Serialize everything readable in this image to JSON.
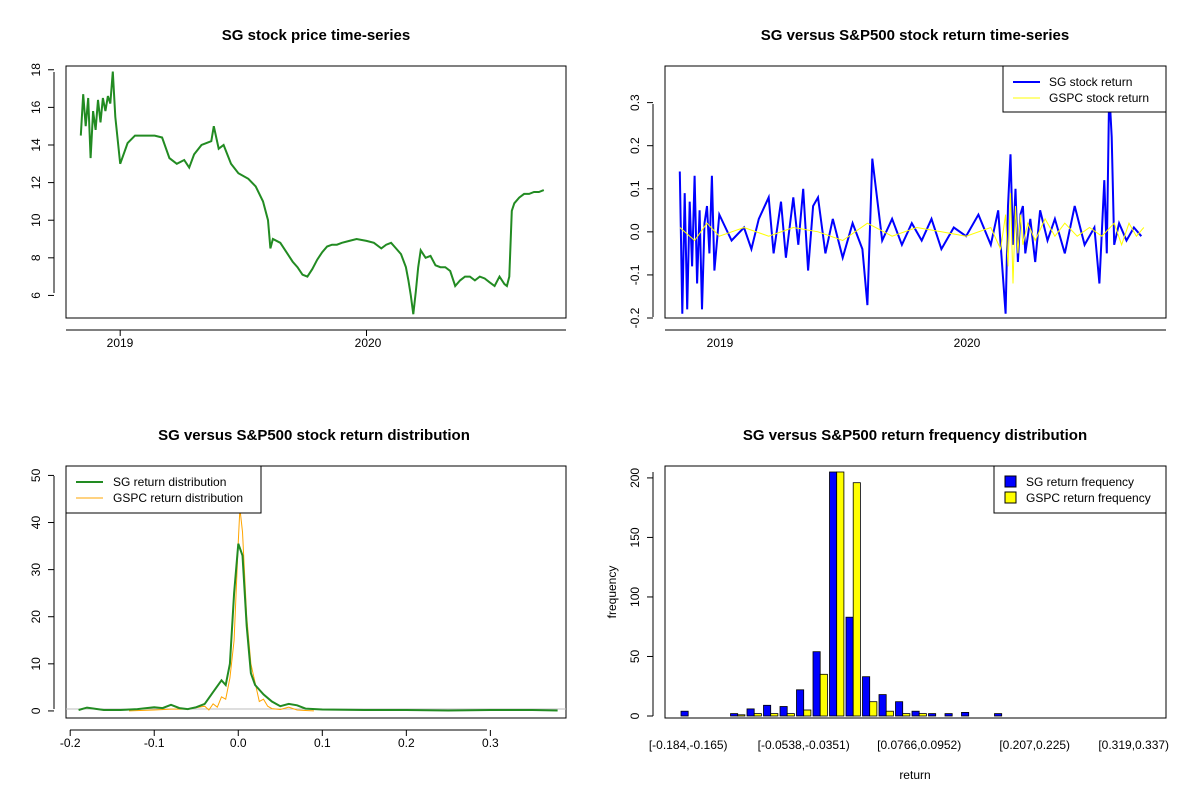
{
  "charts": [
    {
      "id": "p1",
      "type": "line",
      "title": "SG stock price time-series",
      "x_ticks": [
        "2019",
        "2020"
      ],
      "y_ticks": [
        "6",
        "8",
        "10",
        "12",
        "14",
        "16",
        "18"
      ],
      "color": "#228B22",
      "series": [
        {
          "name": "SG stock price",
          "x": [
            2018.84,
            2018.85,
            2018.86,
            2018.87,
            2018.88,
            2018.89,
            2018.9,
            2018.91,
            2018.92,
            2018.93,
            2018.94,
            2018.95,
            2018.96,
            2018.97,
            2018.98,
            2019.0,
            2019.03,
            2019.06,
            2019.1,
            2019.14,
            2019.17,
            2019.2,
            2019.23,
            2019.26,
            2019.28,
            2019.3,
            2019.33,
            2019.35,
            2019.37,
            2019.38,
            2019.4,
            2019.42,
            2019.45,
            2019.48,
            2019.52,
            2019.55,
            2019.58,
            2019.6,
            2019.61,
            2019.62,
            2019.65,
            2019.68,
            2019.7,
            2019.72,
            2019.74,
            2019.76,
            2019.78,
            2019.8,
            2019.82,
            2019.84,
            2019.86,
            2019.88,
            2019.9,
            2019.93,
            2019.96,
            2020.0,
            2020.03,
            2020.06,
            2020.08,
            2020.1,
            2020.12,
            2020.14,
            2020.16,
            2020.17,
            2020.18,
            2020.19,
            2020.2,
            2020.21,
            2020.22,
            2020.24,
            2020.26,
            2020.28,
            2020.3,
            2020.32,
            2020.34,
            2020.36,
            2020.38,
            2020.4,
            2020.42,
            2020.44,
            2020.46,
            2020.48,
            2020.5,
            2020.52,
            2020.54,
            2020.56,
            2020.57,
            2020.58,
            2020.59,
            2020.6,
            2020.62,
            2020.64,
            2020.66,
            2020.68,
            2020.7,
            2020.72
          ],
          "y": [
            14.5,
            16.7,
            15.0,
            16.5,
            13.3,
            15.8,
            14.8,
            16.4,
            15.2,
            16.5,
            15.8,
            16.6,
            16.2,
            17.9,
            15.5,
            13.0,
            14.1,
            14.5,
            14.5,
            14.5,
            14.4,
            13.3,
            13.0,
            13.2,
            12.8,
            13.5,
            14.0,
            14.1,
            14.2,
            15.0,
            13.8,
            14.0,
            13.0,
            12.5,
            12.2,
            11.8,
            11.0,
            10.0,
            8.5,
            9.0,
            8.8,
            8.2,
            7.8,
            7.5,
            7.1,
            7.0,
            7.4,
            7.9,
            8.3,
            8.6,
            8.7,
            8.7,
            8.8,
            8.9,
            9.0,
            8.9,
            8.8,
            8.5,
            8.7,
            8.8,
            8.5,
            8.2,
            7.5,
            6.8,
            6.0,
            5.0,
            6.2,
            7.5,
            8.4,
            8.0,
            8.1,
            7.6,
            7.5,
            7.5,
            7.3,
            6.5,
            6.8,
            7.0,
            7.0,
            6.8,
            7.0,
            6.9,
            6.7,
            6.5,
            7.0,
            6.6,
            6.5,
            7.0,
            10.5,
            10.9,
            11.2,
            11.4,
            11.4,
            11.5,
            11.5,
            11.6
          ]
        }
      ],
      "xlim": [
        2018.78,
        2020.81
      ],
      "ylim": [
        4.8,
        18.2
      ],
      "y_tick_values": [
        6,
        8,
        10,
        12,
        14,
        16,
        18
      ],
      "x_tick_values": [
        2019,
        2020
      ]
    },
    {
      "id": "p2",
      "type": "line",
      "title": "SG versus S&P500 stock return time-series",
      "x_ticks": [
        "2019",
        "2020"
      ],
      "y_ticks": [
        "-0.2",
        "-0.1",
        "0.0",
        "0.1",
        "0.2",
        "0.3"
      ],
      "x_tick_values": [
        2019,
        2020
      ],
      "y_tick_values": [
        -0.2,
        -0.1,
        0.0,
        0.1,
        0.2,
        0.3
      ],
      "xlim": [
        2018.78,
        2020.81
      ],
      "ylim": [
        -0.2,
        0.385
      ],
      "legend": [
        "SG stock return",
        "GSPC stock return"
      ],
      "colors": [
        "#0000FF",
        "#FFFF00"
      ],
      "series": [
        {
          "name": "SG stock return",
          "x": [
            2018.84,
            2018.85,
            2018.86,
            2018.87,
            2018.88,
            2018.89,
            2018.9,
            2018.91,
            2018.92,
            2018.93,
            2018.94,
            2018.95,
            2018.96,
            2018.97,
            2018.98,
            2019.0,
            2019.05,
            2019.1,
            2019.13,
            2019.16,
            2019.2,
            2019.22,
            2019.25,
            2019.27,
            2019.3,
            2019.32,
            2019.34,
            2019.36,
            2019.38,
            2019.4,
            2019.43,
            2019.46,
            2019.5,
            2019.54,
            2019.58,
            2019.6,
            2019.62,
            2019.66,
            2019.7,
            2019.74,
            2019.78,
            2019.82,
            2019.86,
            2019.9,
            2019.95,
            2020.0,
            2020.05,
            2020.1,
            2020.13,
            2020.16,
            2020.17,
            2020.18,
            2020.19,
            2020.2,
            2020.21,
            2020.22,
            2020.23,
            2020.24,
            2020.26,
            2020.28,
            2020.3,
            2020.33,
            2020.36,
            2020.4,
            2020.44,
            2020.48,
            2020.52,
            2020.54,
            2020.56,
            2020.57,
            2020.58,
            2020.59,
            2020.6,
            2020.62,
            2020.65,
            2020.68,
            2020.71
          ],
          "y": [
            0.14,
            -0.19,
            0.09,
            -0.18,
            0.07,
            -0.08,
            0.13,
            -0.12,
            0.05,
            -0.18,
            0.02,
            0.06,
            -0.05,
            0.13,
            -0.09,
            0.04,
            -0.02,
            0.01,
            -0.04,
            0.03,
            0.08,
            -0.05,
            0.07,
            -0.06,
            0.08,
            -0.03,
            0.1,
            -0.09,
            0.06,
            0.08,
            -0.05,
            0.03,
            -0.06,
            0.02,
            -0.04,
            -0.17,
            0.17,
            -0.02,
            0.03,
            -0.03,
            0.02,
            -0.02,
            0.03,
            -0.04,
            0.01,
            -0.01,
            0.04,
            -0.03,
            0.05,
            -0.19,
            0.06,
            0.18,
            -0.03,
            0.1,
            -0.07,
            0.04,
            0.06,
            -0.05,
            0.03,
            -0.07,
            0.05,
            -0.02,
            0.03,
            -0.05,
            0.06,
            -0.03,
            0.01,
            -0.12,
            0.12,
            -0.05,
            0.33,
            0.22,
            -0.03,
            0.02,
            -0.02,
            0.01,
            -0.01
          ]
        },
        {
          "name": "GSPC stock return",
          "x": [
            2018.84,
            2018.9,
            2018.95,
            2019.0,
            2019.1,
            2019.2,
            2019.3,
            2019.4,
            2019.5,
            2019.6,
            2019.7,
            2019.8,
            2019.9,
            2020.0,
            2020.1,
            2020.14,
            2020.16,
            2020.17,
            2020.18,
            2020.19,
            2020.2,
            2020.21,
            2020.22,
            2020.23,
            2020.25,
            2020.28,
            2020.32,
            2020.36,
            2020.4,
            2020.45,
            2020.5,
            2020.55,
            2020.6,
            2020.63,
            2020.66,
            2020.69,
            2020.72
          ],
          "y": [
            0.01,
            -0.02,
            0.02,
            -0.01,
            0.01,
            -0.01,
            0.01,
            0.0,
            -0.02,
            0.02,
            -0.01,
            0.01,
            0.0,
            -0.01,
            0.01,
            -0.04,
            0.04,
            -0.08,
            0.09,
            -0.12,
            0.06,
            -0.05,
            0.04,
            -0.03,
            0.02,
            -0.02,
            0.03,
            -0.01,
            0.02,
            -0.01,
            0.01,
            -0.01,
            0.02,
            -0.03,
            0.02,
            -0.01,
            0.01
          ]
        }
      ]
    },
    {
      "id": "p3",
      "type": "line",
      "title": "SG versus S&P500 stock return distribution",
      "x_ticks": [
        "-0.2",
        "-0.1",
        "0.0",
        "0.1",
        "0.2",
        "0.3"
      ],
      "y_ticks": [
        "0",
        "10",
        "20",
        "30",
        "40",
        "50"
      ],
      "x_tick_values": [
        -0.2,
        -0.1,
        0.0,
        0.1,
        0.2,
        0.3
      ],
      "y_tick_values": [
        0,
        10,
        20,
        30,
        40,
        50
      ],
      "xlim": [
        -0.205,
        0.39
      ],
      "ylim": [
        -1.5,
        52
      ],
      "legend": [
        "SG return distribution",
        "GSPC return distribution"
      ],
      "colors": [
        "#228B22",
        "#FFA500"
      ],
      "series": [
        {
          "name": "SG return distribution",
          "x": [
            -0.19,
            -0.18,
            -0.16,
            -0.14,
            -0.12,
            -0.1,
            -0.09,
            -0.08,
            -0.07,
            -0.06,
            -0.05,
            -0.04,
            -0.03,
            -0.02,
            -0.015,
            -0.01,
            -0.005,
            0.0,
            0.005,
            0.01,
            0.015,
            0.02,
            0.03,
            0.04,
            0.05,
            0.06,
            0.07,
            0.08,
            0.1,
            0.15,
            0.2,
            0.25,
            0.3,
            0.35,
            0.38
          ],
          "y": [
            0.2,
            0.7,
            0.2,
            0.2,
            0.4,
            0.8,
            0.6,
            1.3,
            0.6,
            0.4,
            0.8,
            1.5,
            4.0,
            6.5,
            5.5,
            10.0,
            25.0,
            35.5,
            33.0,
            18.0,
            8.0,
            5.5,
            3.5,
            2.0,
            1.0,
            1.5,
            1.2,
            0.5,
            0.3,
            0.2,
            0.2,
            0.1,
            0.2,
            0.2,
            0.1
          ]
        },
        {
          "name": "GSPC return distribution",
          "x": [
            -0.13,
            -0.1,
            -0.08,
            -0.06,
            -0.05,
            -0.04,
            -0.035,
            -0.03,
            -0.025,
            -0.02,
            -0.015,
            -0.01,
            -0.005,
            0.0,
            0.002,
            0.005,
            0.01,
            0.015,
            0.02,
            0.025,
            0.03,
            0.035,
            0.04,
            0.05,
            0.06,
            0.07,
            0.08,
            0.09
          ],
          "y": [
            0.0,
            0.2,
            0.4,
            0.4,
            0.7,
            1.0,
            0.2,
            1.5,
            0.8,
            3.0,
            2.5,
            7.0,
            15.0,
            36.0,
            43.0,
            38.0,
            20.0,
            10.0,
            6.0,
            2.0,
            2.5,
            1.0,
            0.5,
            0.3,
            0.8,
            0.2,
            0.1,
            0.0
          ]
        }
      ]
    },
    {
      "id": "p4",
      "type": "bar",
      "title": "SG versus S&P500 return frequency distribution",
      "xlabel": "return",
      "ylabel": "frequency",
      "y_ticks": [
        "0",
        "50",
        "100",
        "150",
        "200"
      ],
      "y_tick_values": [
        0,
        50,
        100,
        150,
        200
      ],
      "ylim": [
        0,
        210
      ],
      "x_tick_labels": [
        "[-0.184,-0.165)",
        "[-0.0538,-0.0351)",
        "[0.0766,0.0952)",
        "[0.207,0.225)",
        "[0.319,0.337)"
      ],
      "x_tick_indices": [
        0,
        7,
        14,
        21,
        27
      ],
      "legend": [
        "SG return frequency",
        "GSPC return frequency"
      ],
      "colors": [
        "#0000FF",
        "#FFFF00"
      ],
      "n_bins": 29,
      "series": [
        {
          "name": "SG return frequency",
          "values": [
            4,
            0,
            0,
            2,
            6,
            9,
            8,
            22,
            54,
            205,
            83,
            33,
            18,
            12,
            4,
            2,
            2,
            3,
            0,
            2,
            0,
            0,
            0,
            0,
            0,
            0,
            0,
            0,
            0
          ]
        },
        {
          "name": "GSPC return frequency",
          "values": [
            0,
            0,
            0,
            1,
            2,
            2,
            2,
            5,
            35,
            205,
            196,
            12,
            4,
            2,
            2,
            0,
            0,
            0,
            0,
            0,
            0,
            0,
            0,
            0,
            0,
            0,
            0,
            0,
            0
          ]
        }
      ]
    }
  ]
}
